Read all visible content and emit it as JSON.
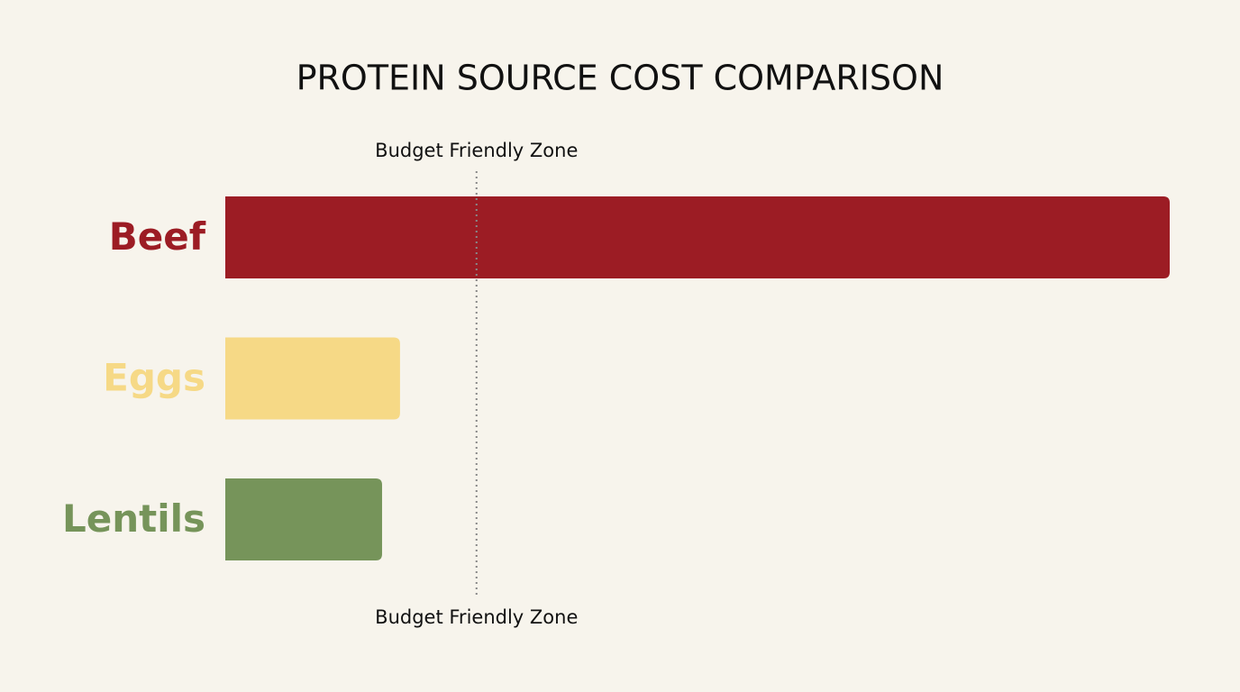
{
  "chart_data": {
    "type": "bar",
    "orientation": "horizontal",
    "title": "PROTEIN SOURCE COST COMPARISON",
    "categories": [
      "Beef",
      "Eggs",
      "Lentils"
    ],
    "values": [
      100,
      18.5,
      16.6
    ],
    "colors": [
      "#9c1c24",
      "#f6d986",
      "#76945a"
    ],
    "xlim": [
      0,
      100
    ],
    "grid": false,
    "reference_line": {
      "value": 26.6,
      "labels": [
        "Budget Friendly Zone",
        "Budget Friendly Zone"
      ]
    }
  }
}
